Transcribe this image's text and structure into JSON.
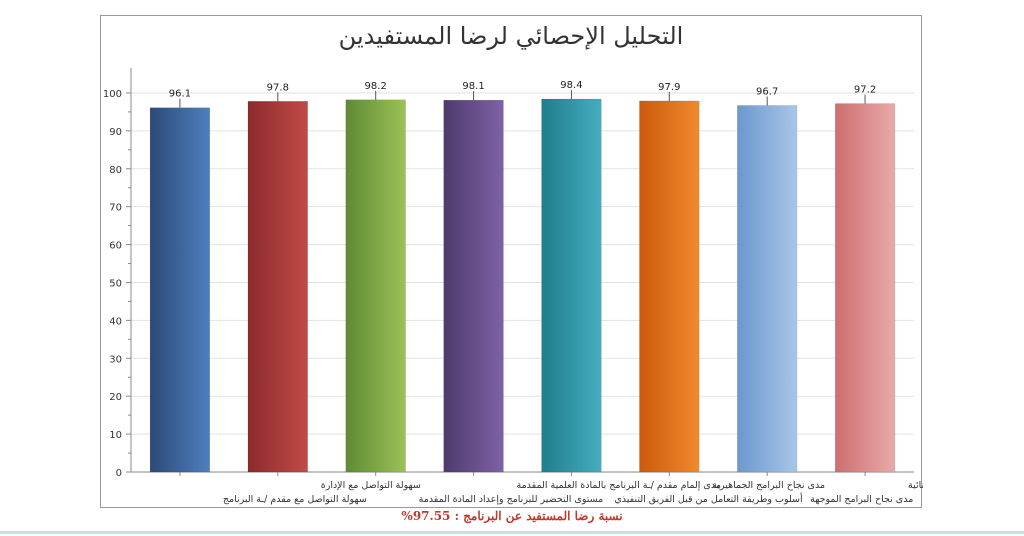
{
  "chart_data": {
    "type": "bar",
    "title": "التحليل الإحصائي لرضا المستفيدين",
    "xlabel": "",
    "ylabel": "",
    "ylim": [
      0,
      105
    ],
    "yticks": [
      0,
      10,
      20,
      30,
      40,
      50,
      60,
      70,
      80,
      90,
      100
    ],
    "grid": true,
    "legend": "none",
    "categories": [
      "سهولة التواصل مع مقدم /ـة البرنامج",
      "سهولة التواصل مع الإدارة",
      "مستوى التحضير للبرنامج وإعداد المادة المقدمة",
      "مدى إلمام مقدم /ـة البرنامج بالمادة العلمية المقدمة",
      "أسلوب وطريقة التعامل من قبل الفريق التنفيذي",
      "مدى نجاح البرامج الجماهيرية",
      "مدى نجاح البرامج الموجهة",
      "مدى نجاح البرامج البنائية"
    ],
    "label_lines": [
      [
        "",
        "سهولة التواصل مع مقدم /ـة البرنامج"
      ],
      [
        "سهولة التواصل مع الإدارة",
        ""
      ],
      [
        "",
        "مستوى التحضير للبرنامج وإعداد المادة المقدمة"
      ],
      [
        "مدى إلمام مقدم /ـة البرنامج بالمادة العلمية المقدمة",
        ""
      ],
      [
        "",
        "أسلوب وطريقة التعامل من قبل الفريق التنفيذي"
      ],
      [
        "مدى نجاح البرامج الجماهيرية",
        ""
      ],
      [
        "",
        "مدى نجاح البرامج الموجهة"
      ],
      [
        "مدى نجاح البرامج البنائية",
        ""
      ]
    ],
    "values": [
      96.1,
      97.8,
      98.2,
      98.1,
      98.4,
      97.9,
      96.7,
      97.2
    ],
    "colors": [
      [
        "#2b4a77",
        "#4e7fbf"
      ],
      [
        "#8b2b2b",
        "#c14a47"
      ],
      [
        "#5e8a34",
        "#9bc257"
      ],
      [
        "#4e3a6e",
        "#7e62a5"
      ],
      [
        "#1f7d8c",
        "#45adc0"
      ],
      [
        "#cc5a0a",
        "#f08a2e"
      ],
      [
        "#6a98ce",
        "#a9c6e8"
      ],
      [
        "#cf6e6e",
        "#e8aaaa"
      ]
    ]
  },
  "footnote": "نسبة رضا المستفيد عن البرنامج : 97.55%"
}
